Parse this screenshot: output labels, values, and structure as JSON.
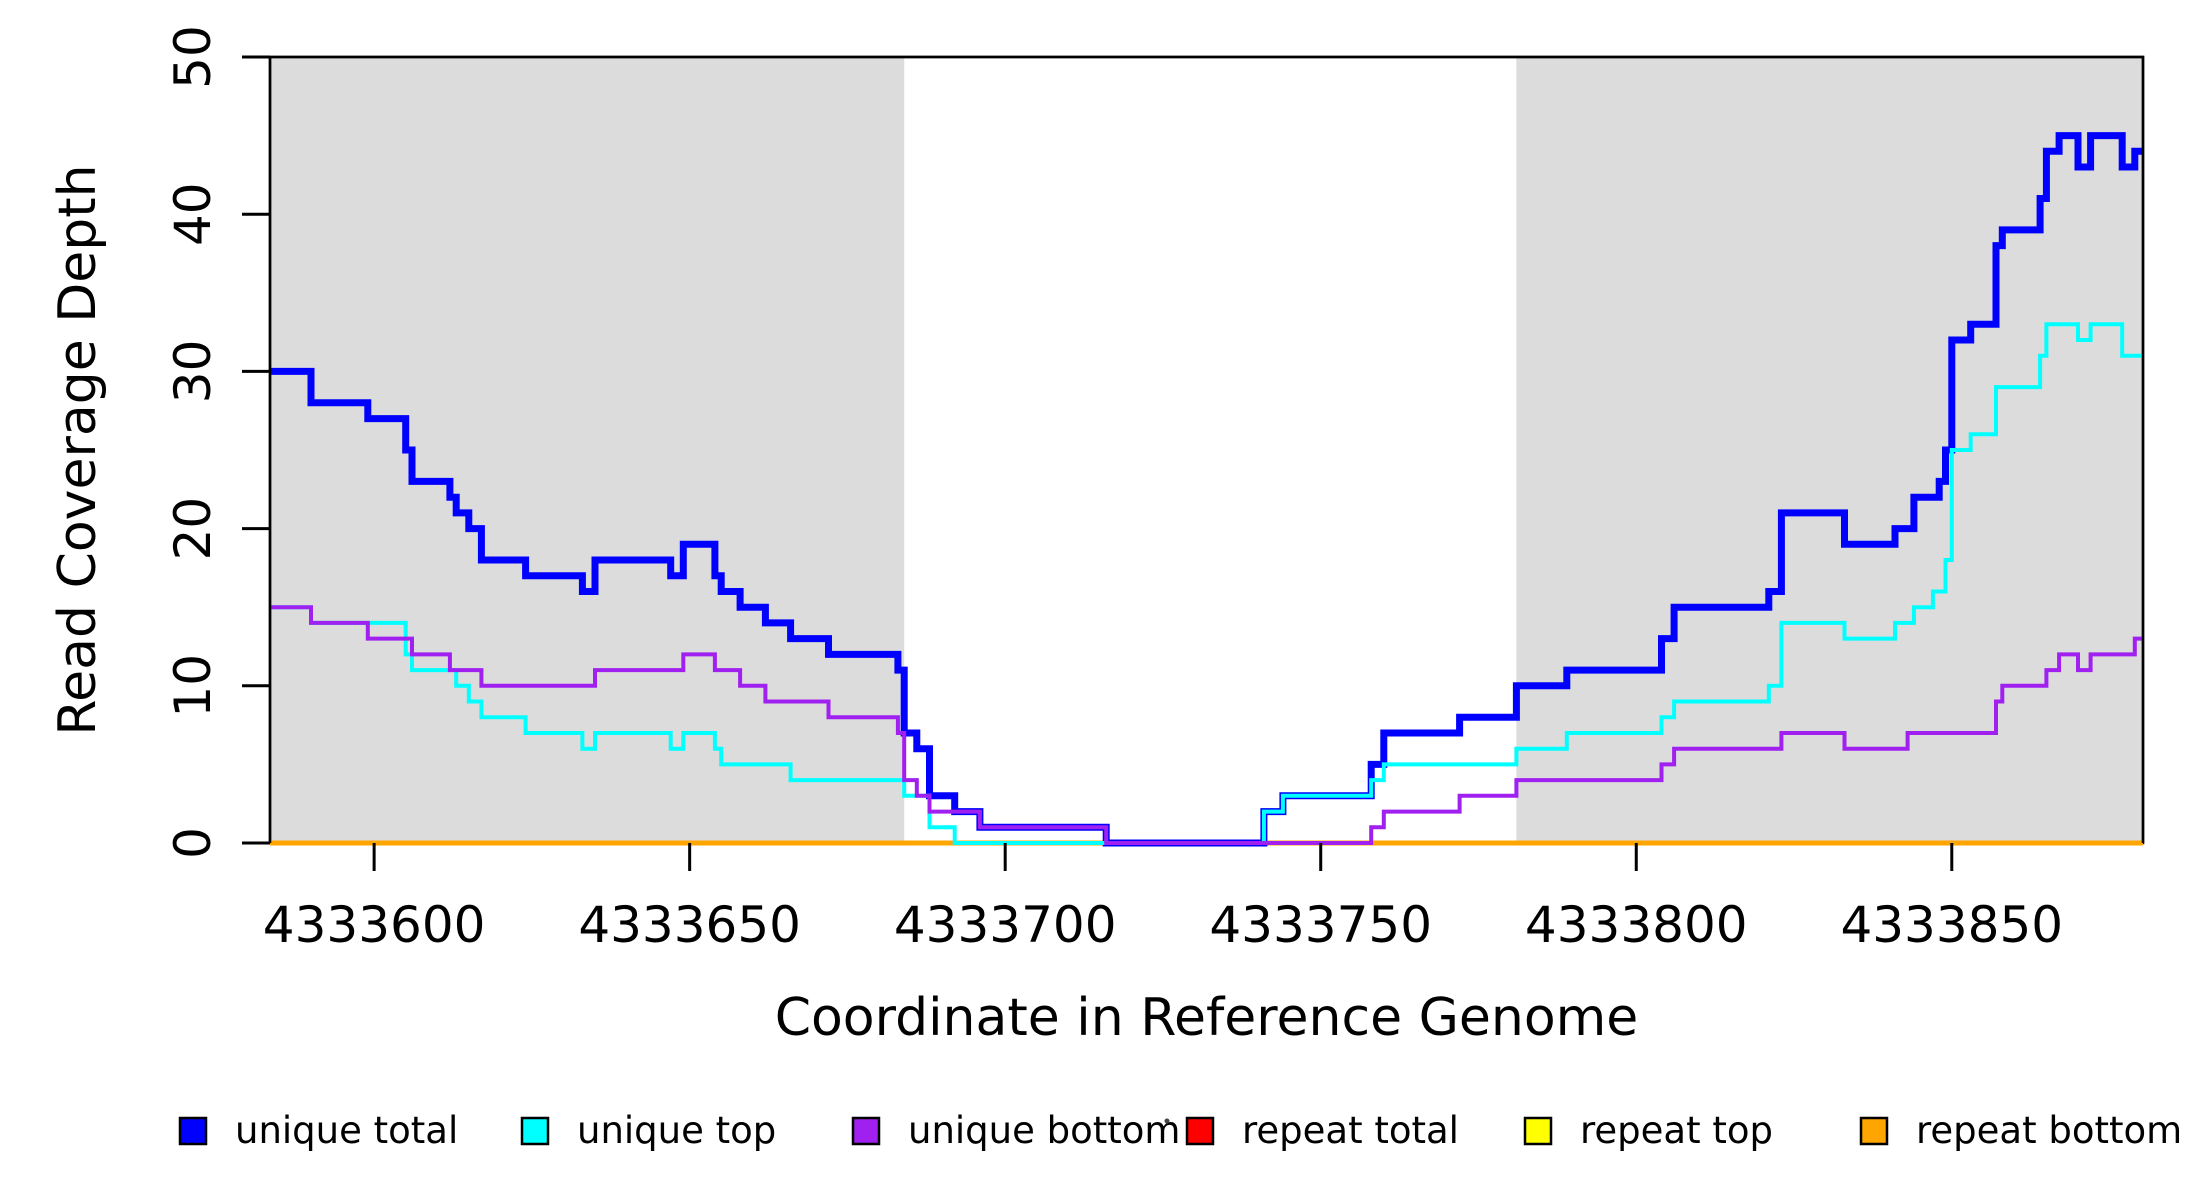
{
  "chart_data": {
    "type": "line",
    "subtype": "step-coverage",
    "title": "",
    "xlabel": "Coordinate in Reference Genome",
    "ylabel": "Read Coverage Depth",
    "xlim": [
      4333583.5,
      4333880.3
    ],
    "ylim": [
      0,
      50
    ],
    "grid": "off",
    "background_color": "#ffffff",
    "shaded_region_color": "#DCDCDC",
    "shaded_regions": [
      {
        "x0": 4333583.5,
        "x1": 4333684.0
      },
      {
        "x0": 4333781.0,
        "x1": 4333880.3
      }
    ],
    "x_ticks": {
      "values": [
        4333600,
        4333650,
        4333700,
        4333750,
        4333800,
        4333850
      ],
      "labels": [
        "4333600",
        "4333650",
        "4333700",
        "4333750",
        "4333800",
        "4333850"
      ]
    },
    "y_ticks": {
      "values": [
        0,
        10,
        20,
        30,
        40,
        50
      ],
      "labels": [
        "0",
        "10",
        "20",
        "30",
        "40",
        "50"
      ],
      "rotated": true
    },
    "series": [
      {
        "name": "repeat total",
        "color": "#FF0000",
        "width": 5,
        "steps": [
          [
            4333583.5,
            0
          ]
        ]
      },
      {
        "name": "repeat top",
        "color": "#FFFF00",
        "width": 5,
        "steps": [
          [
            4333583.5,
            0
          ]
        ]
      },
      {
        "name": "repeat bottom",
        "color": "#FFA500",
        "width": 5,
        "steps": [
          [
            4333583.5,
            0
          ]
        ]
      },
      {
        "name": "unique total",
        "color": "#0000FF",
        "width": 7,
        "steps": [
          [
            4333583.5,
            30
          ],
          [
            4333590,
            28
          ],
          [
            4333599,
            27
          ],
          [
            4333605,
            25
          ],
          [
            4333606,
            23
          ],
          [
            4333612,
            22
          ],
          [
            4333613,
            21
          ],
          [
            4333615,
            20
          ],
          [
            4333617,
            18
          ],
          [
            4333624,
            17
          ],
          [
            4333633,
            16
          ],
          [
            4333635,
            18
          ],
          [
            4333647,
            17
          ],
          [
            4333649,
            19
          ],
          [
            4333654,
            17
          ],
          [
            4333655,
            16
          ],
          [
            4333658,
            15
          ],
          [
            4333662,
            14
          ],
          [
            4333666,
            13
          ],
          [
            4333672,
            12
          ],
          [
            4333683,
            11
          ],
          [
            4333684,
            7
          ],
          [
            4333686,
            6
          ],
          [
            4333688,
            3
          ],
          [
            4333692,
            2
          ],
          [
            4333696,
            1
          ],
          [
            4333716,
            0
          ],
          [
            4333741,
            2
          ],
          [
            4333744,
            3
          ],
          [
            4333758,
            5
          ],
          [
            4333760,
            7
          ],
          [
            4333772,
            8
          ],
          [
            4333781,
            10
          ],
          [
            4333789,
            11
          ],
          [
            4333804,
            13
          ],
          [
            4333806,
            15
          ],
          [
            4333821,
            16
          ],
          [
            4333823,
            21
          ],
          [
            4333833,
            19
          ],
          [
            4333841,
            20
          ],
          [
            4333844,
            22
          ],
          [
            4333848,
            23
          ],
          [
            4333849,
            25
          ],
          [
            4333850,
            32
          ],
          [
            4333853,
            33
          ],
          [
            4333857,
            38
          ],
          [
            4333858,
            39
          ],
          [
            4333864,
            41
          ],
          [
            4333865,
            44
          ],
          [
            4333867,
            45
          ],
          [
            4333870,
            43
          ],
          [
            4333872,
            45
          ],
          [
            4333877,
            43
          ],
          [
            4333879,
            44
          ]
        ]
      },
      {
        "name": "unique top",
        "color": "#00FFFF",
        "width": 4,
        "steps": [
          [
            4333583.5,
            15
          ],
          [
            4333590,
            14
          ],
          [
            4333605,
            12
          ],
          [
            4333606,
            11
          ],
          [
            4333613,
            10
          ],
          [
            4333615,
            9
          ],
          [
            4333617,
            8
          ],
          [
            4333624,
            7
          ],
          [
            4333633,
            6
          ],
          [
            4333635,
            7
          ],
          [
            4333647,
            6
          ],
          [
            4333649,
            7
          ],
          [
            4333654,
            6
          ],
          [
            4333655,
            5
          ],
          [
            4333666,
            4
          ],
          [
            4333684,
            3
          ],
          [
            4333688,
            1
          ],
          [
            4333692,
            0
          ],
          [
            4333741,
            2
          ],
          [
            4333744,
            3
          ],
          [
            4333758,
            4
          ],
          [
            4333760,
            5
          ],
          [
            4333781,
            6
          ],
          [
            4333789,
            7
          ],
          [
            4333804,
            8
          ],
          [
            4333806,
            9
          ],
          [
            4333821,
            10
          ],
          [
            4333823,
            14
          ],
          [
            4333833,
            13
          ],
          [
            4333841,
            14
          ],
          [
            4333844,
            15
          ],
          [
            4333847,
            16
          ],
          [
            4333849,
            18
          ],
          [
            4333850,
            25
          ],
          [
            4333853,
            26
          ],
          [
            4333857,
            29
          ],
          [
            4333864,
            31
          ],
          [
            4333865,
            33
          ],
          [
            4333870,
            32
          ],
          [
            4333872,
            33
          ],
          [
            4333877,
            31
          ]
        ]
      },
      {
        "name": "unique bottom",
        "color": "#A020F0",
        "width": 4,
        "steps": [
          [
            4333583.5,
            15
          ],
          [
            4333590,
            14
          ],
          [
            4333599,
            13
          ],
          [
            4333606,
            12
          ],
          [
            4333612,
            11
          ],
          [
            4333617,
            10
          ],
          [
            4333635,
            11
          ],
          [
            4333649,
            12
          ],
          [
            4333654,
            11
          ],
          [
            4333658,
            10
          ],
          [
            4333662,
            9
          ],
          [
            4333672,
            8
          ],
          [
            4333683,
            7
          ],
          [
            4333684,
            4
          ],
          [
            4333686,
            3
          ],
          [
            4333688,
            2
          ],
          [
            4333696,
            1
          ],
          [
            4333716,
            0
          ],
          [
            4333758,
            1
          ],
          [
            4333760,
            2
          ],
          [
            4333772,
            3
          ],
          [
            4333781,
            4
          ],
          [
            4333804,
            5
          ],
          [
            4333806,
            6
          ],
          [
            4333823,
            7
          ],
          [
            4333833,
            6
          ],
          [
            4333843,
            7
          ],
          [
            4333857,
            9
          ],
          [
            4333858,
            10
          ],
          [
            4333865,
            11
          ],
          [
            4333867,
            12
          ],
          [
            4333870,
            11
          ],
          [
            4333872,
            12
          ],
          [
            4333879,
            13
          ]
        ]
      }
    ],
    "legend": {
      "position": "bottom",
      "entries": [
        {
          "label": "unique total",
          "color": "#0000FF"
        },
        {
          "label": "unique top",
          "color": "#00FFFF"
        },
        {
          "label": "unique bottom",
          "color": "#A020F0"
        },
        {
          "label": "repeat total",
          "color": "#FF0000"
        },
        {
          "label": "repeat top",
          "color": "#FFFF00"
        },
        {
          "label": "repeat bottom",
          "color": "#FFA500"
        }
      ]
    }
  }
}
